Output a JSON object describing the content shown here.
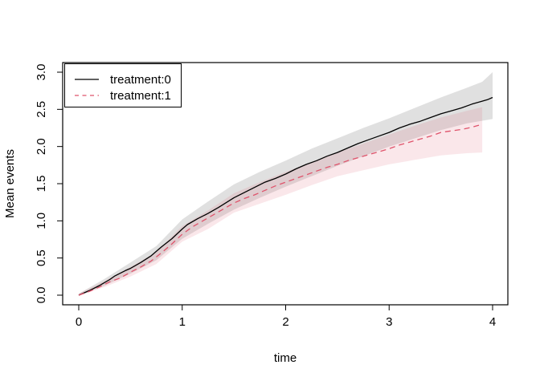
{
  "figure": {
    "background": "#ffffff"
  },
  "chart_data": {
    "type": "line",
    "title": "",
    "xlabel": "time",
    "ylabel": "Mean events",
    "xlim": [
      0,
      4
    ],
    "ylim": [
      0,
      3
    ],
    "grid": false,
    "x_ticks": [
      0,
      1,
      2,
      3,
      4
    ],
    "x_tick_labels": [
      "0",
      "1",
      "2",
      "3",
      "4"
    ],
    "y_ticks": [
      0.0,
      0.5,
      1.0,
      1.5,
      2.0,
      2.5,
      3.0
    ],
    "y_tick_labels": [
      "0.0",
      "0.5",
      "1.0",
      "1.5",
      "2.0",
      "2.5",
      "3.0"
    ],
    "legend": {
      "position": "topleft",
      "entries": [
        "treatment:0",
        "treatment:1"
      ]
    },
    "colors": {
      "treatment0_line": "#000000",
      "treatment1_line": "#DF536B",
      "treatment0_band": "#000000",
      "treatment1_band": "#DF536B",
      "axis": "#000000",
      "background": "#ffffff"
    },
    "series": [
      {
        "name": "treatment:0",
        "color": "#000000",
        "linestyle": "solid",
        "points": [
          [
            0,
            0
          ],
          [
            0.1,
            0.06
          ],
          [
            0.2,
            0.13
          ],
          [
            0.3,
            0.21
          ],
          [
            0.35,
            0.26
          ],
          [
            0.45,
            0.33
          ],
          [
            0.5,
            0.36
          ],
          [
            0.6,
            0.44
          ],
          [
            0.7,
            0.53
          ],
          [
            0.8,
            0.65
          ],
          [
            0.9,
            0.76
          ],
          [
            1.0,
            0.89
          ],
          [
            1.05,
            0.95
          ],
          [
            1.15,
            1.03
          ],
          [
            1.25,
            1.1
          ],
          [
            1.35,
            1.18
          ],
          [
            1.5,
            1.31
          ],
          [
            1.6,
            1.38
          ],
          [
            1.7,
            1.45
          ],
          [
            1.8,
            1.52
          ],
          [
            1.9,
            1.57
          ],
          [
            2.0,
            1.63
          ],
          [
            2.1,
            1.7
          ],
          [
            2.2,
            1.76
          ],
          [
            2.3,
            1.81
          ],
          [
            2.4,
            1.87
          ],
          [
            2.5,
            1.92
          ],
          [
            2.6,
            1.98
          ],
          [
            2.7,
            2.04
          ],
          [
            2.8,
            2.09
          ],
          [
            2.9,
            2.14
          ],
          [
            3.0,
            2.19
          ],
          [
            3.1,
            2.25
          ],
          [
            3.2,
            2.3
          ],
          [
            3.3,
            2.34
          ],
          [
            3.4,
            2.39
          ],
          [
            3.5,
            2.44
          ],
          [
            3.6,
            2.48
          ],
          [
            3.7,
            2.52
          ],
          [
            3.8,
            2.57
          ],
          [
            3.9,
            2.61
          ],
          [
            3.95,
            2.63
          ],
          [
            4.0,
            2.66
          ]
        ],
        "band": {
          "fill": "#000000",
          "opacity": 0.12,
          "upper": [
            [
              0,
              0.02
            ],
            [
              0.25,
              0.22
            ],
            [
              0.5,
              0.44
            ],
            [
              0.75,
              0.66
            ],
            [
              1,
              1.02
            ],
            [
              1.25,
              1.26
            ],
            [
              1.5,
              1.49
            ],
            [
              1.75,
              1.66
            ],
            [
              2,
              1.81
            ],
            [
              2.25,
              1.97
            ],
            [
              2.5,
              2.11
            ],
            [
              2.75,
              2.25
            ],
            [
              3,
              2.38
            ],
            [
              3.25,
              2.52
            ],
            [
              3.5,
              2.66
            ],
            [
              3.75,
              2.79
            ],
            [
              3.9,
              2.87
            ],
            [
              4,
              3.0
            ]
          ],
          "lower": [
            [
              0,
              -0.01
            ],
            [
              0.25,
              0.13
            ],
            [
              0.5,
              0.29
            ],
            [
              0.75,
              0.47
            ],
            [
              1,
              0.76
            ],
            [
              1.25,
              0.96
            ],
            [
              1.5,
              1.15
            ],
            [
              1.75,
              1.31
            ],
            [
              2,
              1.46
            ],
            [
              2.25,
              1.6
            ],
            [
              2.5,
              1.74
            ],
            [
              2.75,
              1.87
            ],
            [
              3,
              2.0
            ],
            [
              3.25,
              2.11
            ],
            [
              3.5,
              2.22
            ],
            [
              3.75,
              2.31
            ],
            [
              4,
              2.37
            ]
          ]
        }
      },
      {
        "name": "treatment:1",
        "color": "#DF536B",
        "linestyle": "dashed",
        "points": [
          [
            0,
            0
          ],
          [
            0.1,
            0.05
          ],
          [
            0.2,
            0.11
          ],
          [
            0.3,
            0.18
          ],
          [
            0.4,
            0.23
          ],
          [
            0.5,
            0.31
          ],
          [
            0.6,
            0.38
          ],
          [
            0.7,
            0.46
          ],
          [
            0.8,
            0.57
          ],
          [
            0.9,
            0.69
          ],
          [
            1.0,
            0.82
          ],
          [
            1.1,
            0.92
          ],
          [
            1.2,
            1.0
          ],
          [
            1.3,
            1.08
          ],
          [
            1.4,
            1.16
          ],
          [
            1.5,
            1.24
          ],
          [
            1.6,
            1.3
          ],
          [
            1.7,
            1.35
          ],
          [
            1.8,
            1.41
          ],
          [
            1.9,
            1.47
          ],
          [
            2.0,
            1.52
          ],
          [
            2.1,
            1.57
          ],
          [
            2.2,
            1.62
          ],
          [
            2.3,
            1.67
          ],
          [
            2.4,
            1.72
          ],
          [
            2.5,
            1.76
          ],
          [
            2.6,
            1.81
          ],
          [
            2.7,
            1.85
          ],
          [
            2.8,
            1.89
          ],
          [
            2.9,
            1.93
          ],
          [
            3.0,
            1.97
          ],
          [
            3.1,
            2.02
          ],
          [
            3.2,
            2.06
          ],
          [
            3.3,
            2.1
          ],
          [
            3.4,
            2.14
          ],
          [
            3.5,
            2.19
          ],
          [
            3.6,
            2.21
          ],
          [
            3.7,
            2.23
          ],
          [
            3.8,
            2.26
          ],
          [
            3.9,
            2.3
          ]
        ],
        "band": {
          "fill": "#DF536B",
          "opacity": 0.14,
          "upper": [
            [
              0,
              0.02
            ],
            [
              0.25,
              0.19
            ],
            [
              0.5,
              0.38
            ],
            [
              0.75,
              0.58
            ],
            [
              1,
              0.93
            ],
            [
              1.25,
              1.14
            ],
            [
              1.5,
              1.37
            ],
            [
              1.75,
              1.52
            ],
            [
              2,
              1.66
            ],
            [
              2.25,
              1.79
            ],
            [
              2.5,
              1.92
            ],
            [
              2.75,
              2.04
            ],
            [
              3,
              2.16
            ],
            [
              3.25,
              2.28
            ],
            [
              3.5,
              2.39
            ],
            [
              3.75,
              2.48
            ],
            [
              3.9,
              2.53
            ]
          ],
          "lower": [
            [
              0,
              -0.01
            ],
            [
              0.25,
              0.11
            ],
            [
              0.5,
              0.25
            ],
            [
              0.75,
              0.42
            ],
            [
              1,
              0.72
            ],
            [
              1.25,
              0.89
            ],
            [
              1.5,
              1.11
            ],
            [
              1.75,
              1.23
            ],
            [
              2,
              1.35
            ],
            [
              2.25,
              1.48
            ],
            [
              2.5,
              1.6
            ],
            [
              2.75,
              1.68
            ],
            [
              3,
              1.76
            ],
            [
              3.25,
              1.82
            ],
            [
              3.5,
              1.88
            ],
            [
              3.75,
              1.91
            ],
            [
              3.9,
              1.92
            ]
          ]
        }
      }
    ]
  }
}
